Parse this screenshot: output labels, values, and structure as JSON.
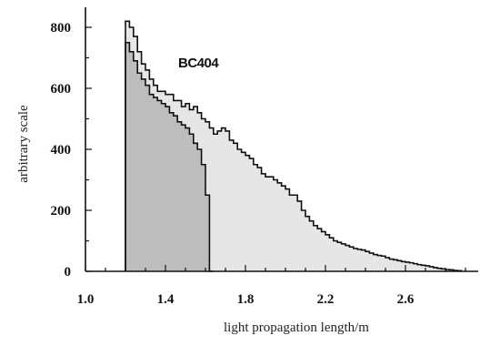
{
  "chart_data": {
    "type": "histogram",
    "annotation": "BC404",
    "xlabel": "light propagation length/m",
    "ylabel": "arbitrary scale",
    "xlim": [
      1.0,
      3.0
    ],
    "ylim": [
      0,
      860
    ],
    "xticks": [
      "1.0",
      "1.4",
      "1.8",
      "2.2",
      "2.6"
    ],
    "yticks": [
      "0",
      "200",
      "400",
      "600",
      "800"
    ],
    "bin_width": 0.02,
    "x_start": 1.2,
    "series": [
      {
        "fill": "none",
        "values": [
          820,
          800,
          770,
          720,
          680,
          660,
          630,
          610,
          590,
          590,
          580,
          580,
          560,
          560,
          540,
          550,
          530,
          540,
          520,
          500,
          490,
          470,
          450,
          460,
          470,
          460,
          430,
          420,
          400,
          390,
          380,
          370,
          350,
          340,
          320,
          310,
          310,
          300,
          290,
          280,
          270,
          250,
          250,
          230,
          200,
          180,
          165,
          150,
          140,
          130,
          120,
          110,
          100,
          95,
          90,
          85,
          80,
          75,
          72,
          70,
          65,
          60,
          55,
          52,
          50,
          45,
          40,
          38,
          35,
          32,
          30,
          28,
          25,
          22,
          20,
          18,
          15,
          12,
          10,
          8,
          6,
          5,
          3,
          2
        ]
      },
      {
        "fill": "shaded",
        "values": [
          750,
          720,
          690,
          650,
          630,
          610,
          580,
          570,
          560,
          550,
          540,
          520,
          510,
          490,
          480,
          470,
          450,
          420,
          400,
          350,
          250,
          0
        ]
      }
    ],
    "colors": {
      "line": "#111111",
      "shade_light": "#e6e6e6",
      "shade_dark": "#bdbdbd"
    }
  }
}
